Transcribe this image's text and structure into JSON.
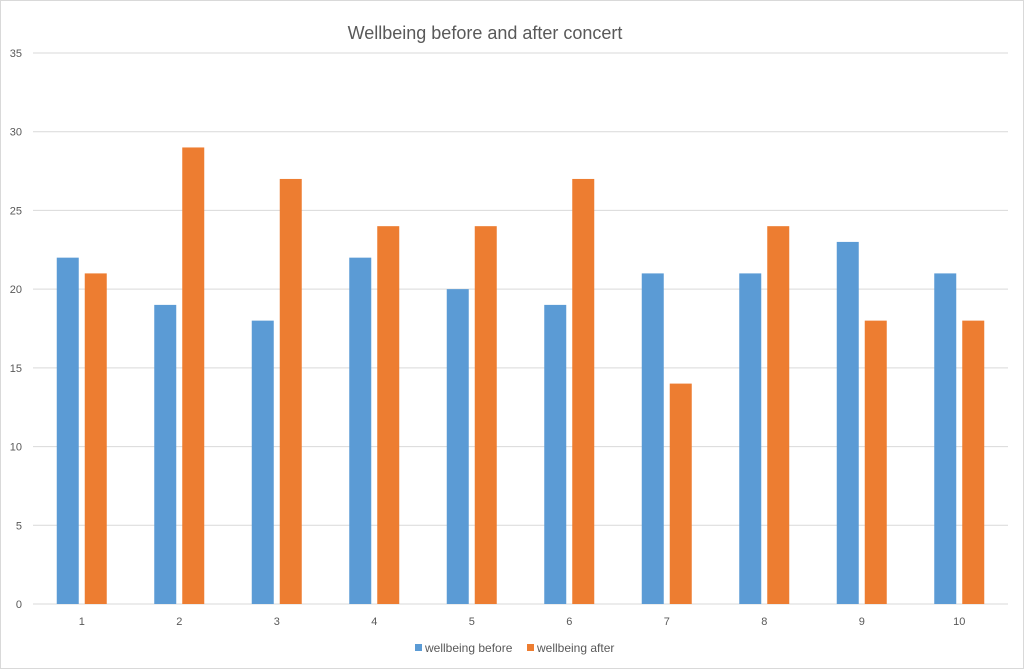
{
  "chart_data": {
    "type": "bar",
    "title": "Wellbeing before and after concert",
    "xlabel": "",
    "ylabel": "",
    "categories": [
      "1",
      "2",
      "3",
      "4",
      "5",
      "6",
      "7",
      "8",
      "9",
      "10"
    ],
    "series": [
      {
        "name": "wellbeing before",
        "color": "#5B9BD5",
        "values": [
          22,
          19,
          18,
          22,
          20,
          19,
          21,
          21,
          23,
          21
        ]
      },
      {
        "name": "wellbeing after",
        "color": "#ED7D31",
        "values": [
          21,
          29,
          27,
          24,
          24,
          27,
          14,
          24,
          18,
          18
        ]
      }
    ],
    "ylim": [
      0,
      35
    ],
    "yticks": [
      "0",
      "5",
      "10",
      "15",
      "20",
      "25",
      "30",
      "35"
    ],
    "grid": true,
    "legend_position": "bottom"
  }
}
